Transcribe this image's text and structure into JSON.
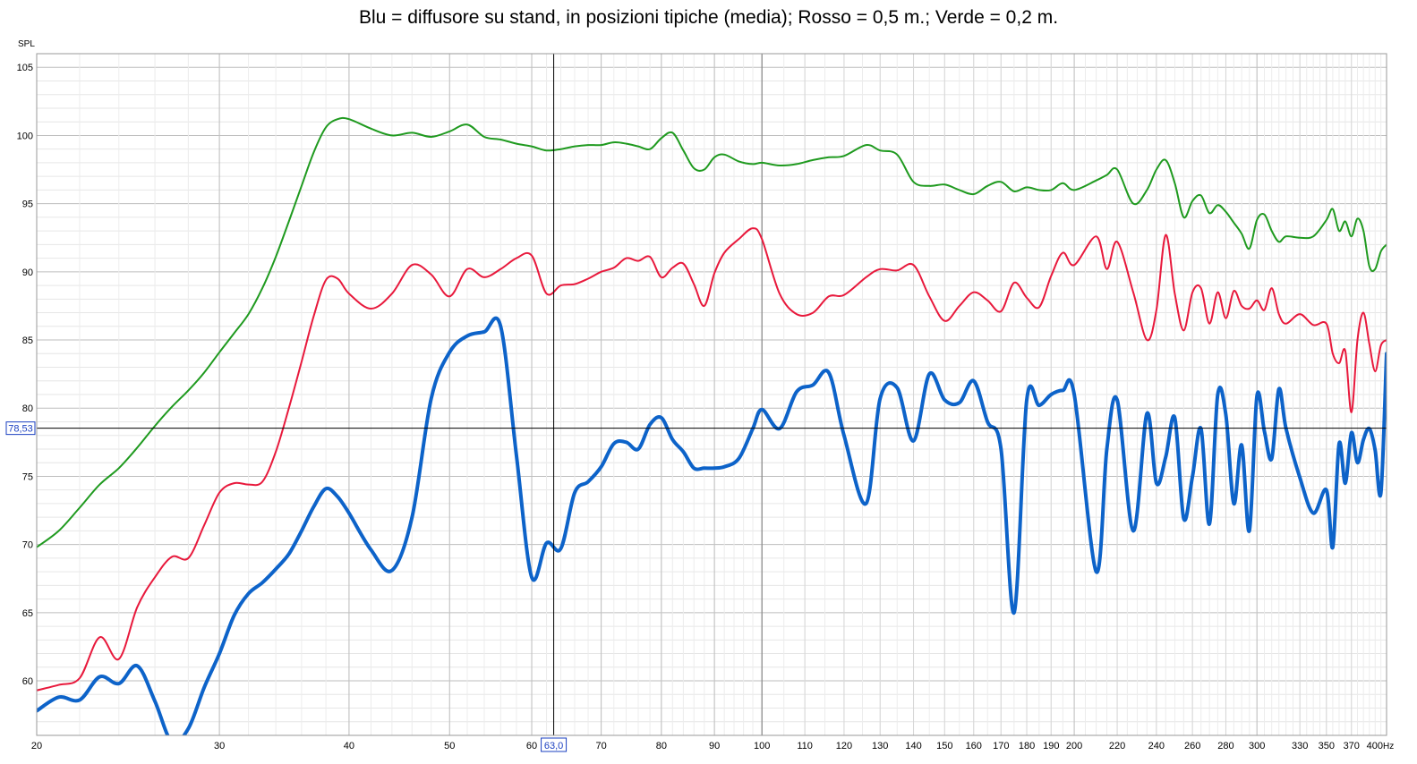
{
  "chart_data": {
    "type": "line",
    "title": "Blu = diffusore su stand, in posizioni tipiche (media); Rosso = 0,5 m.; Verde = 0,2 m.",
    "ylabel": "SPL",
    "xunit": "Hz",
    "xscale": "log",
    "xlim": [
      20,
      400
    ],
    "ylim": [
      56,
      106
    ],
    "grid": true,
    "x_ticks": [
      {
        "v": 20,
        "label": "20"
      },
      {
        "v": 30,
        "label": "30"
      },
      {
        "v": 40,
        "label": "40"
      },
      {
        "v": 50,
        "label": "50"
      },
      {
        "v": 60,
        "label": "60"
      },
      {
        "v": 70,
        "label": "70"
      },
      {
        "v": 80,
        "label": "80"
      },
      {
        "v": 90,
        "label": "90"
      },
      {
        "v": 100,
        "label": "100"
      },
      {
        "v": 110,
        "label": "110"
      },
      {
        "v": 120,
        "label": "120"
      },
      {
        "v": 130,
        "label": "130"
      },
      {
        "v": 140,
        "label": "140"
      },
      {
        "v": 150,
        "label": "150"
      },
      {
        "v": 160,
        "label": "160"
      },
      {
        "v": 170,
        "label": "170"
      },
      {
        "v": 180,
        "label": "180"
      },
      {
        "v": 190,
        "label": "190"
      },
      {
        "v": 200,
        "label": "200"
      },
      {
        "v": 220,
        "label": "220"
      },
      {
        "v": 240,
        "label": "240"
      },
      {
        "v": 260,
        "label": "260"
      },
      {
        "v": 280,
        "label": "280"
      },
      {
        "v": 300,
        "label": "300"
      },
      {
        "v": 330,
        "label": "330"
      },
      {
        "v": 350,
        "label": "350"
      },
      {
        "v": 370,
        "label": "370"
      },
      {
        "v": 400,
        "label": "400"
      }
    ],
    "y_ticks": [
      60,
      65,
      70,
      75,
      80,
      85,
      90,
      95,
      100,
      105
    ],
    "cursor": {
      "x": 63.0,
      "x_label": "63,0",
      "y": 78.53,
      "y_label": "78,53"
    },
    "colors": {
      "green": "#1f9a1f",
      "red": "#e8193c",
      "blue": "#0d63c9",
      "grid": "#c9c9c9",
      "cursor": "#000000",
      "cursor_label": "#1a3fc0"
    },
    "series": [
      {
        "color_key": "green",
        "width": 2,
        "x": [
          20,
          21,
          22,
          23,
          24,
          25,
          26,
          27,
          28,
          29,
          30,
          31,
          32,
          33,
          34,
          35,
          36,
          37,
          38,
          39,
          40,
          42,
          44,
          46,
          48,
          50,
          52,
          54,
          56,
          58,
          60,
          62,
          64,
          66,
          68,
          70,
          72,
          74,
          76,
          78,
          80,
          82,
          84,
          86,
          88,
          90,
          92,
          95,
          98,
          100,
          104,
          108,
          112,
          116,
          120,
          126,
          130,
          135,
          140,
          145,
          150,
          155,
          160,
          165,
          170,
          175,
          180,
          185,
          190,
          195,
          200,
          210,
          215,
          220,
          228,
          235,
          240,
          245,
          250,
          255,
          260,
          265,
          270,
          275,
          280,
          285,
          290,
          295,
          300,
          305,
          310,
          315,
          320,
          330,
          340,
          350,
          355,
          360,
          365,
          370,
          375,
          380,
          385,
          390,
          395,
          400
        ],
        "y": [
          69.8,
          71.0,
          72.7,
          74.4,
          75.6,
          77.1,
          78.7,
          80.1,
          81.3,
          82.6,
          84.1,
          85.5,
          86.9,
          88.8,
          91.1,
          93.7,
          96.3,
          98.8,
          100.6,
          101.2,
          101.2,
          100.5,
          100.0,
          100.2,
          99.9,
          100.3,
          100.8,
          99.9,
          99.7,
          99.4,
          99.2,
          98.9,
          99.0,
          99.2,
          99.3,
          99.3,
          99.5,
          99.4,
          99.2,
          99.0,
          99.8,
          100.2,
          98.9,
          97.6,
          97.5,
          98.4,
          98.6,
          98.1,
          97.9,
          98.0,
          97.8,
          97.9,
          98.2,
          98.4,
          98.5,
          99.3,
          98.9,
          98.6,
          96.6,
          96.3,
          96.4,
          96.0,
          95.7,
          96.3,
          96.6,
          95.9,
          96.2,
          96.0,
          96.0,
          96.5,
          96.0,
          96.7,
          97.1,
          97.5,
          95.0,
          96.0,
          97.5,
          98.2,
          96.5,
          94.0,
          95.2,
          95.6,
          94.3,
          94.9,
          94.4,
          93.6,
          92.8,
          91.7,
          93.8,
          94.2,
          93.0,
          92.2,
          92.6,
          92.5,
          92.6,
          93.8,
          94.6,
          93.0,
          93.7,
          92.6,
          93.9,
          93.0,
          90.4,
          90.2,
          91.5,
          92.0
        ]
      },
      {
        "color_key": "red",
        "width": 2,
        "x": [
          20,
          21,
          22,
          23,
          24,
          25,
          26,
          27,
          28,
          29,
          30,
          31,
          32,
          33,
          34,
          35,
          36,
          37,
          38,
          39,
          40,
          42,
          44,
          46,
          48,
          50,
          52,
          54,
          56,
          58,
          60,
          62,
          64,
          66,
          68,
          70,
          72,
          74,
          76,
          78,
          80,
          82,
          84,
          86,
          88,
          90,
          92,
          95,
          98,
          100,
          104,
          108,
          112,
          116,
          120,
          126,
          130,
          135,
          140,
          145,
          150,
          155,
          160,
          165,
          170,
          175,
          180,
          185,
          190,
          195,
          200,
          210,
          215,
          220,
          228,
          235,
          240,
          245,
          250,
          255,
          260,
          265,
          270,
          275,
          280,
          285,
          290,
          295,
          300,
          305,
          310,
          315,
          320,
          330,
          340,
          350,
          355,
          360,
          365,
          370,
          375,
          380,
          385,
          390,
          395,
          400
        ],
        "y": [
          59.3,
          59.7,
          60.2,
          63.2,
          61.6,
          65.4,
          67.6,
          69.1,
          69.0,
          71.4,
          73.8,
          74.5,
          74.4,
          74.6,
          76.8,
          80.0,
          83.4,
          86.8,
          89.4,
          89.5,
          88.4,
          87.3,
          88.4,
          90.5,
          89.8,
          88.2,
          90.2,
          89.6,
          90.2,
          91.0,
          91.2,
          88.4,
          89.0,
          89.1,
          89.5,
          90.0,
          90.3,
          91.0,
          90.8,
          91.1,
          89.6,
          90.3,
          90.6,
          89.1,
          87.5,
          89.9,
          91.4,
          92.4,
          93.2,
          92.4,
          88.4,
          86.9,
          87.0,
          88.2,
          88.3,
          89.6,
          90.2,
          90.1,
          90.5,
          88.2,
          86.4,
          87.5,
          88.5,
          87.9,
          87.1,
          89.2,
          88.1,
          87.4,
          89.7,
          91.4,
          90.5,
          92.6,
          90.2,
          92.2,
          88.5,
          85.0,
          87.2,
          92.7,
          88.4,
          85.7,
          88.5,
          88.8,
          86.2,
          88.5,
          86.6,
          88.6,
          87.5,
          87.3,
          87.9,
          87.2,
          88.8,
          86.9,
          86.2,
          86.9,
          86.1,
          86.2,
          84.0,
          83.3,
          84.2,
          79.7,
          85.0,
          87.0,
          84.7,
          82.7,
          84.6,
          85.0
        ]
      },
      {
        "color_key": "blue",
        "width": 4,
        "x": [
          20,
          21,
          22,
          23,
          24,
          25,
          26,
          27,
          28,
          29,
          30,
          31,
          32,
          33,
          34,
          35,
          36,
          37,
          38,
          39,
          40,
          42,
          44,
          46,
          48,
          50,
          52,
          54,
          56,
          58,
          60,
          62,
          64,
          66,
          68,
          70,
          72,
          74,
          76,
          78,
          80,
          82,
          84,
          86,
          88,
          90,
          92,
          95,
          98,
          100,
          104,
          108,
          112,
          116,
          120,
          126,
          130,
          135,
          140,
          145,
          150,
          155,
          160,
          165,
          170,
          175,
          180,
          185,
          190,
          195,
          200,
          210,
          215,
          220,
          228,
          235,
          240,
          245,
          250,
          255,
          260,
          265,
          270,
          275,
          280,
          285,
          290,
          295,
          300,
          305,
          310,
          315,
          320,
          330,
          340,
          350,
          355,
          360,
          365,
          370,
          375,
          380,
          385,
          390,
          395,
          400
        ],
        "y": [
          57.8,
          58.8,
          58.6,
          60.3,
          59.8,
          61.1,
          58.5,
          55.5,
          56.5,
          59.5,
          62.0,
          64.8,
          66.4,
          67.2,
          68.2,
          69.3,
          71.0,
          72.8,
          74.1,
          73.5,
          72.3,
          69.6,
          68.1,
          72.0,
          80.7,
          84.1,
          85.3,
          85.6,
          86.0,
          76.5,
          67.6,
          70.1,
          69.7,
          73.8,
          74.6,
          75.7,
          77.4,
          77.5,
          77.0,
          78.8,
          79.3,
          77.7,
          76.8,
          75.6,
          75.6,
          75.6,
          75.7,
          76.3,
          78.5,
          79.9,
          78.5,
          81.2,
          81.7,
          82.6,
          78.0,
          73.0,
          80.7,
          81.5,
          77.6,
          82.5,
          80.6,
          80.4,
          82.0,
          79.0,
          77.0,
          65.0,
          80.6,
          80.2,
          81.0,
          81.3,
          81.0,
          68.0,
          77.0,
          80.6,
          71.0,
          79.6,
          74.5,
          76.4,
          79.3,
          71.9,
          75.0,
          78.5,
          71.5,
          81.0,
          79.5,
          73.0,
          77.3,
          71.0,
          80.9,
          78.3,
          76.3,
          81.4,
          78.5,
          74.9,
          72.3,
          74.0,
          69.8,
          77.4,
          74.5,
          78.2,
          76.0,
          77.7,
          78.5,
          76.9,
          73.8,
          84.0
        ]
      }
    ]
  }
}
